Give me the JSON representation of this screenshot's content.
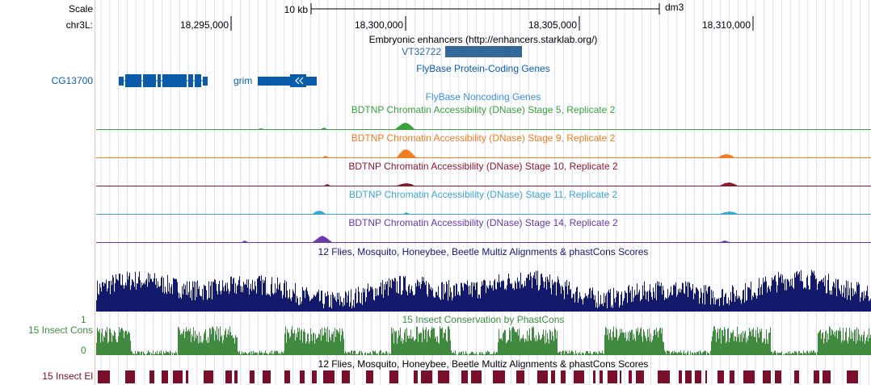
{
  "ruler": {
    "scale_label": "Scale",
    "chrom_label": "chr3L:",
    "scale_bar_text": "10 kb",
    "assembly": "dm3",
    "positions": [
      "18,295,000",
      "18,300,000",
      "18,305,000",
      "18,310,000"
    ]
  },
  "tracks": {
    "enhancers": {
      "title": "Embryonic enhancers (http://enhancers.starklab.org/)",
      "feature_label": "VT32722",
      "color": "#336699"
    },
    "flybase_coding": {
      "title": "FlyBase Protein-Coding Genes",
      "color": "#0a5cab",
      "genes": [
        "CG13700",
        "grim"
      ]
    },
    "flybase_noncoding": {
      "title": "FlyBase Noncoding Genes",
      "color": "#3d8fd6"
    },
    "dnase": [
      {
        "title": "BDTNP Chromatin Accessibility (DNase) Stage 5, Replicate 2",
        "color": "#3aa13a"
      },
      {
        "title": "BDTNP Chromatin Accessibility (DNase) Stage 9, Replicate 2",
        "color": "#f07d21"
      },
      {
        "title": "BDTNP Chromatin Accessibility (DNase) Stage 10, Replicate 2",
        "color": "#8a1a2e"
      },
      {
        "title": "BDTNP Chromatin Accessibility (DNase) Stage 11, Replicate 2",
        "color": "#3fa6d2"
      },
      {
        "title": "BDTNP Chromatin Accessibility (DNase) Stage 14, Replicate 2",
        "color": "#6a3aa8"
      }
    ],
    "multiz": {
      "title": "12 Flies, Mosquito, Honeybee, Beetle Multiz Alignments & phastCons Scores",
      "color": "#141a6b"
    },
    "phastcons": {
      "title": "15 Insect Conservation by PhastCons",
      "left_label": "15 Insect Cons",
      "axis_max": "1",
      "axis_min": "0",
      "color": "#3f8a3f"
    },
    "elements": {
      "title": "12 Flies, Mosquito, Honeybee, Beetle Multiz Alignments & phastCons Scores",
      "left_label": "15 Insect El",
      "color": "#7a0f2c"
    }
  }
}
